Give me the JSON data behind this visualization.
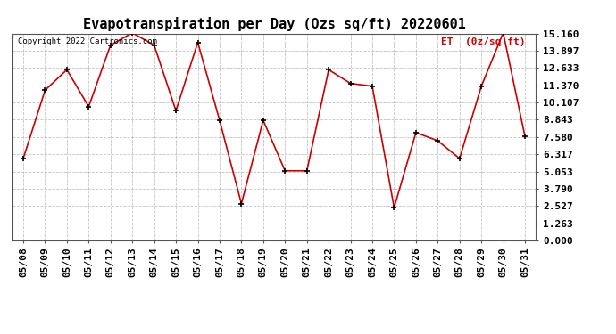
{
  "title": "Evapotranspiration per Day (Ozs sq/ft) 20220601",
  "copyright_text": "Copyright 2022 Cartronics.com",
  "legend_label": "ET  (0z/sq ft)",
  "dates": [
    "05/08",
    "05/09",
    "05/10",
    "05/11",
    "05/12",
    "05/13",
    "05/14",
    "05/15",
    "05/16",
    "05/17",
    "05/18",
    "05/19",
    "05/20",
    "05/21",
    "05/22",
    "05/23",
    "05/24",
    "05/25",
    "05/26",
    "05/27",
    "05/28",
    "05/29",
    "05/30",
    "05/31"
  ],
  "values": [
    6.0,
    11.0,
    12.5,
    9.8,
    14.3,
    15.2,
    14.3,
    9.5,
    14.5,
    8.8,
    2.7,
    8.8,
    5.1,
    5.1,
    12.5,
    11.5,
    11.3,
    2.4,
    7.9,
    7.3,
    6.0,
    11.3,
    15.2,
    7.6
  ],
  "yticks": [
    0.0,
    1.263,
    2.527,
    3.79,
    5.053,
    6.317,
    7.58,
    8.843,
    10.107,
    11.37,
    12.633,
    13.897,
    15.16
  ],
  "ymax": 15.16,
  "ymin": 0.0,
  "line_color": "#cc0000",
  "marker_color": "#000000",
  "bg_color": "#ffffff",
  "grid_color": "#aaaaaa",
  "title_fontsize": 11,
  "tick_fontsize": 8,
  "copyright_color": "#000000",
  "legend_color": "#cc0000"
}
